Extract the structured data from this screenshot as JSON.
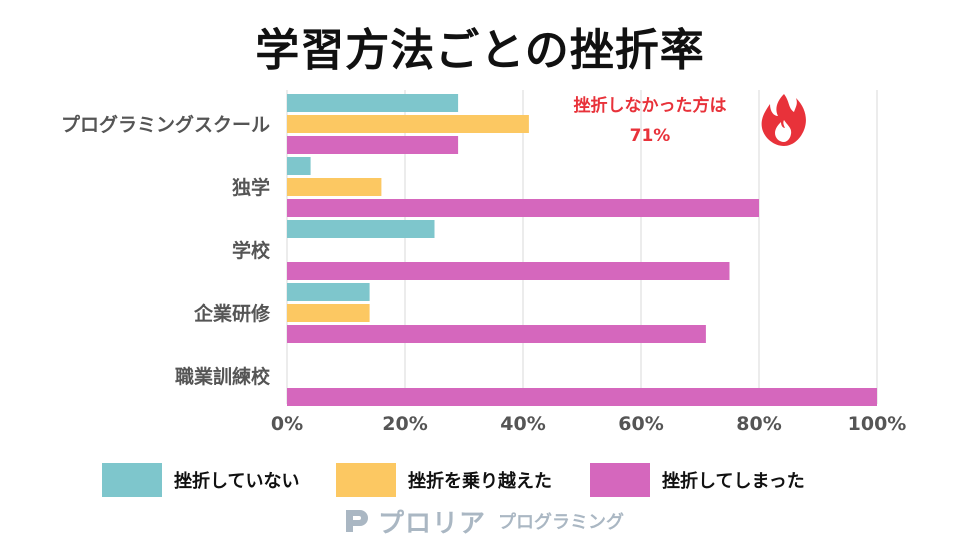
{
  "title": "学習方法ごとの挫折率",
  "annotation": {
    "line1": "挫折しなかった方は",
    "line2": "71%",
    "icon": "fire-icon",
    "color": "#e8323a"
  },
  "chart_data": {
    "type": "bar",
    "orientation": "horizontal",
    "title": "学習方法ごとの挫折率",
    "categories": [
      "プログラミングスクール",
      "独学",
      "学校",
      "企業研修",
      "職業訓練校"
    ],
    "series": [
      {
        "name": "挫折していない",
        "color": "#7ec6cc",
        "values": [
          29,
          4,
          25,
          14,
          0
        ]
      },
      {
        "name": "挫折を乗り越えた",
        "color": "#fcc862",
        "values": [
          41,
          16,
          0,
          14,
          0
        ]
      },
      {
        "name": "挫折してしまった",
        "color": "#d567bd",
        "values": [
          29,
          80,
          75,
          71,
          100
        ]
      }
    ],
    "xlim": [
      0,
      100
    ],
    "ticks": [
      "0%",
      "20%",
      "40%",
      "60%",
      "80%",
      "100%"
    ],
    "tick_values": [
      0,
      20,
      40,
      60,
      80,
      100
    ],
    "grid": true,
    "legend_position": "bottom"
  },
  "legend": {
    "items": [
      {
        "label": "挫折していない",
        "color": "#7ec6cc"
      },
      {
        "label": "挫折を乗り越えた",
        "color": "#fcc862"
      },
      {
        "label": "挫折してしまった",
        "color": "#d567bd"
      }
    ]
  },
  "brand": {
    "name": "プロリア",
    "sub": "プログラミング",
    "icon": "proria-logo-icon",
    "color": "#aab7c3"
  }
}
